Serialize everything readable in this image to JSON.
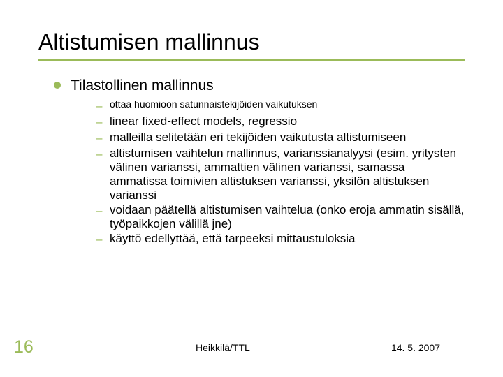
{
  "colors": {
    "accent": "#9bbb59",
    "text": "#000000",
    "background": "#ffffff"
  },
  "title": "Altistumisen mallinnus",
  "main_item": "Tilastollinen mallinnus",
  "sub_items": [
    {
      "text": "ottaa huomioon satunnaistekijöiden vaikutuksen",
      "size": "small"
    },
    {
      "text": "linear fixed-effect models, regressio",
      "size": "large"
    },
    {
      "text": "malleilla selitetään eri tekijöiden vaikutusta altistumiseen",
      "size": "large"
    },
    {
      "text": "altistumisen vaihtelun mallinnus, varianssianalyysi (esim. yritysten välinen varianssi, ammattien välinen varianssi, samassa ammatissa toimivien altistuksen varianssi, yksilön altistuksen varianssi",
      "size": "large"
    },
    {
      "text": "voidaan päätellä altistumisen vaihtelua (onko eroja ammatin sisällä, työpaikkojen välillä jne)",
      "size": "large"
    },
    {
      "text": "käyttö edellyttää, että tarpeeksi mittaustuloksia",
      "size": "large"
    }
  ],
  "page_number": "16",
  "footer_author": "Heikkilä/TTL",
  "footer_date": "14. 5. 2007"
}
